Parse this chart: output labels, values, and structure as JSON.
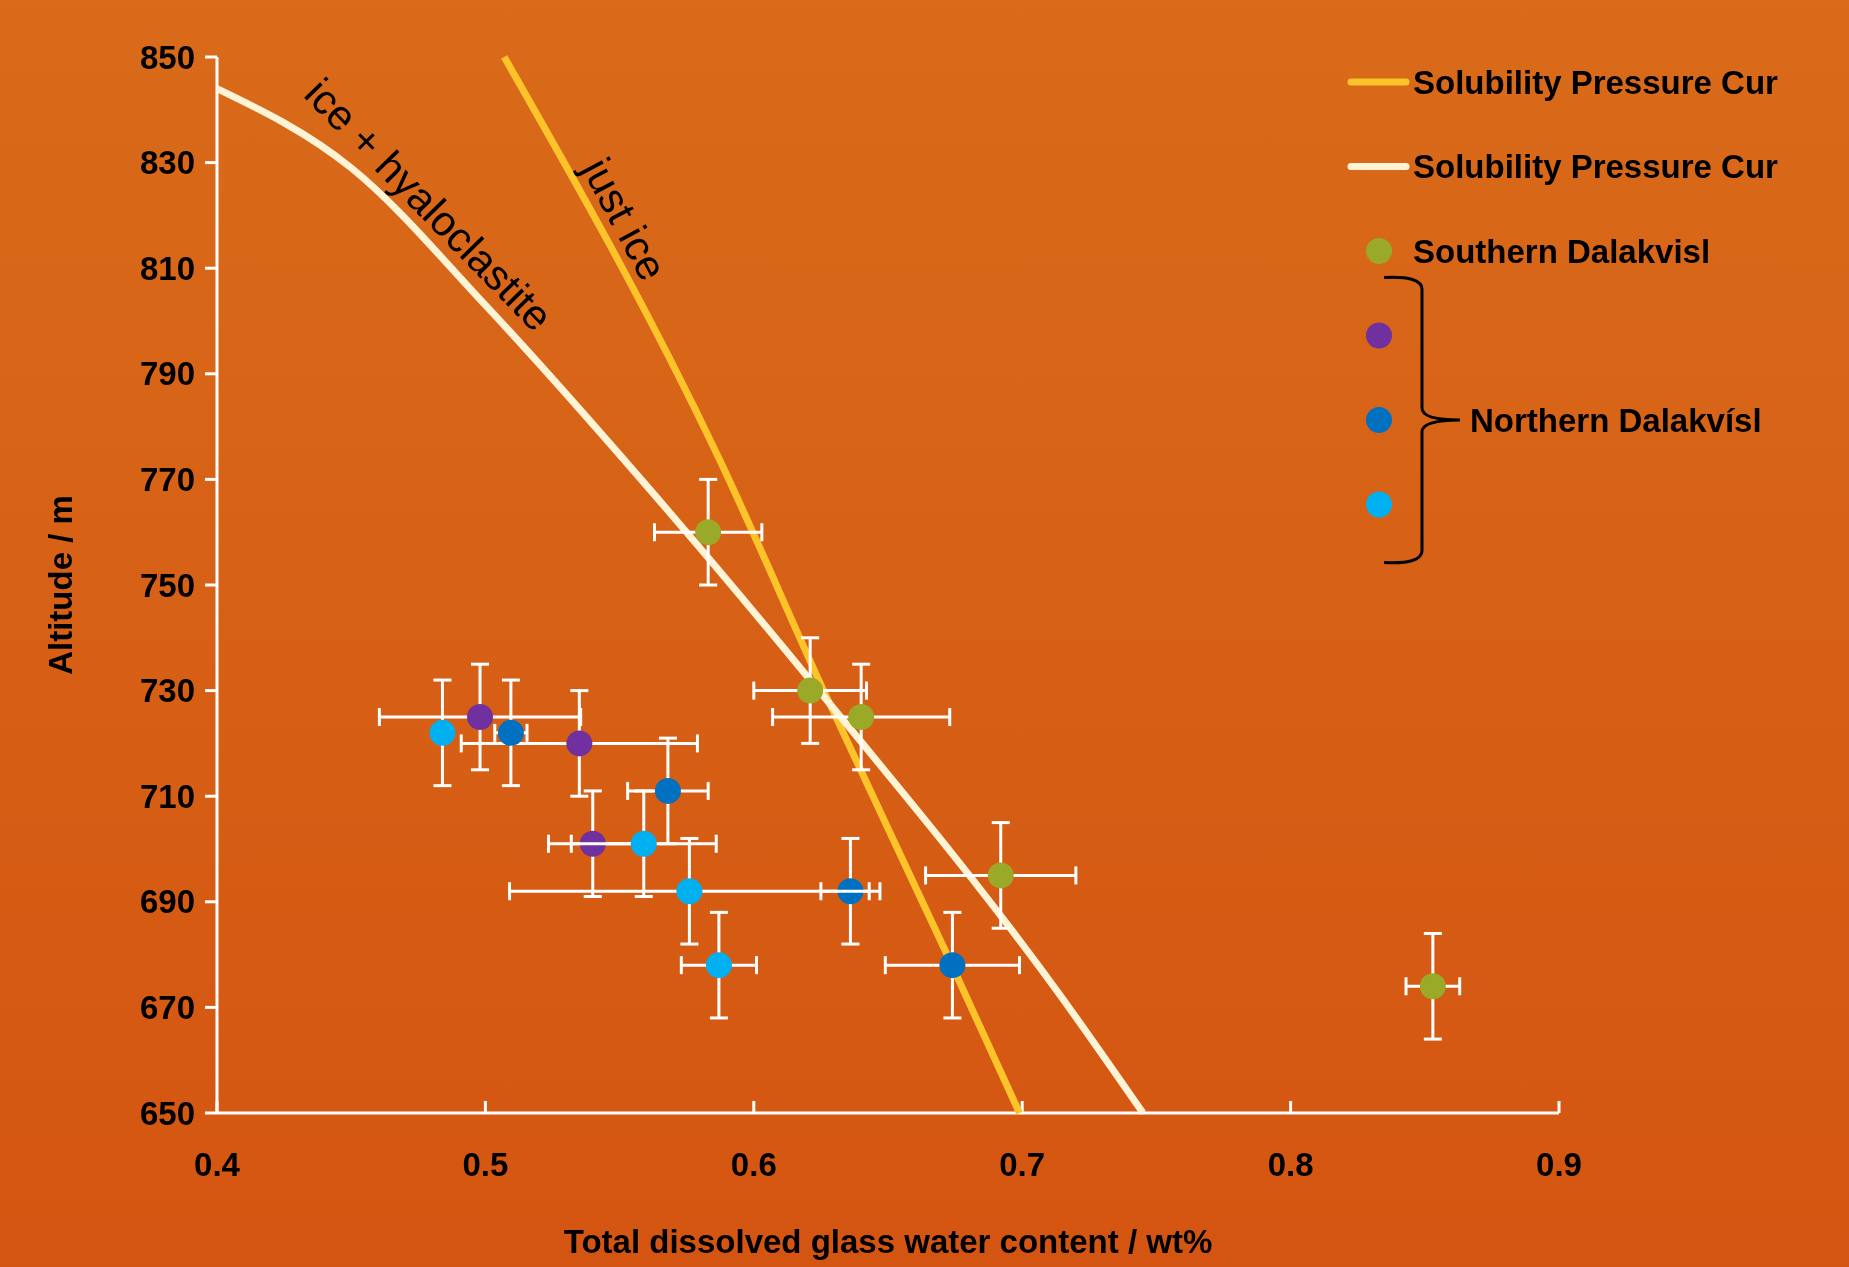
{
  "chart_data": {
    "type": "scatter",
    "xlabel": "Total dissolved glass water content / wt%",
    "ylabel": "Altitude / m",
    "xlim": [
      0.4,
      0.9
    ],
    "xticks": [
      0.4,
      0.5,
      0.6,
      0.7,
      0.8,
      0.9
    ],
    "ylim": [
      650,
      850
    ],
    "yticks": [
      650,
      670,
      690,
      710,
      730,
      750,
      770,
      790,
      810,
      830,
      850
    ],
    "grid": false,
    "legend": "top right",
    "marker": "circle",
    "series": [
      {
        "name": "Solubility Pressure Cur",
        "type": "line",
        "line_style": "solid",
        "marker": "none",
        "color": "#fcc32a",
        "x": [
          0.507,
          0.587,
          0.626,
          0.672,
          0.699
        ],
        "values": [
          850,
          774,
          730,
          680,
          650
        ]
      },
      {
        "name": "Solubility Pressure Cur",
        "type": "line",
        "line_style": "solid",
        "marker": "none",
        "color": "#fff3d6",
        "x": [
          0.4,
          0.45,
          0.5,
          0.558,
          0.621,
          0.714,
          0.745
        ],
        "values": [
          844,
          829,
          803,
          770,
          732,
          672.4,
          650
        ]
      },
      {
        "name": "Southern Dalakvisl",
        "color": "#9aaa28",
        "x": [
          0.583,
          0.621,
          0.64,
          0.692,
          0.853
        ],
        "values": [
          760,
          730,
          725,
          695,
          674
        ],
        "errors": [
          10,
          10,
          10,
          10,
          10
        ],
        "xerrors": [
          0.02,
          0.021,
          0.033,
          0.028,
          0.01
        ]
      },
      {
        "color": "#7030a0",
        "x": [
          0.498,
          0.535,
          0.54
        ],
        "values": [
          725,
          720,
          701
        ],
        "errors": [
          10,
          10,
          10
        ],
        "xerrors": [
          0.0375,
          0.044,
          0.0165
        ]
      },
      {
        "color": "#0070c0",
        "x": [
          0.5095,
          0.568,
          0.636,
          0.674
        ],
        "values": [
          722,
          711,
          692,
          678
        ],
        "errors": [
          10,
          10,
          10,
          10
        ],
        "xerrors": [
          0.006,
          0.015,
          0.011,
          0.025
        ]
      },
      {
        "color": "#00b0f0",
        "x": [
          0.484,
          0.559,
          0.576,
          0.587
        ],
        "values": [
          722,
          701,
          692,
          678
        ],
        "errors": [
          10,
          10,
          10,
          10
        ],
        "xerrors": [
          null,
          0.027,
          0.067,
          0.014
        ]
      }
    ],
    "annotations": [
      "just ice",
      "ice + hyaloclastite",
      "Northern Dalakvísl"
    ]
  }
}
